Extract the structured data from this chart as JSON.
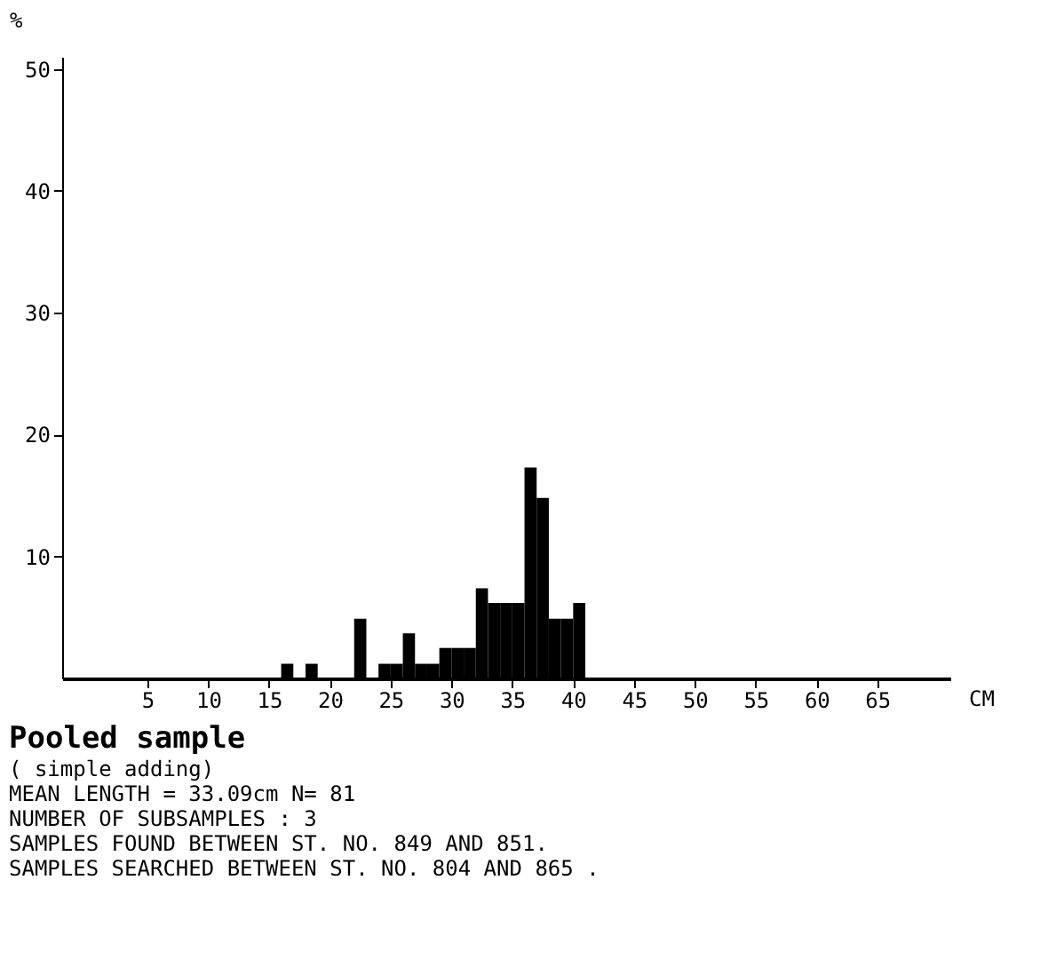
{
  "chart_data": {
    "type": "histogram",
    "title": "Pooled sample",
    "subtitle": "( simple adding)",
    "xlabel": "CM",
    "ylabel": "%",
    "bins": [
      15,
      16,
      17,
      18,
      19,
      20,
      21,
      22,
      23,
      24,
      25,
      26,
      27,
      28,
      29,
      30,
      31,
      32,
      33,
      34,
      35,
      36,
      37,
      38,
      39,
      40,
      41
    ],
    "values": [
      0,
      1.2,
      0,
      1.2,
      0,
      0,
      0,
      4.9,
      0,
      1.2,
      1.2,
      3.7,
      1.2,
      1.2,
      2.5,
      2.5,
      2.5,
      7.4,
      6.2,
      6.2,
      6.2,
      17.3,
      14.8,
      4.9,
      4.9,
      6.2
    ],
    "color": "#000000",
    "xlim": [
      -2,
      71
    ],
    "xticks": [
      5,
      10,
      15,
      20,
      25,
      30,
      35,
      40,
      45,
      50,
      55,
      60,
      65
    ],
    "ylim": [
      0,
      51
    ],
    "yticks": [
      10,
      20,
      30,
      40,
      50
    ],
    "grid": false,
    "annotations": [
      "MEAN LENGTH = 33.09cm  N=   81",
      "NUMBER OF SUBSAMPLES :  3",
      "SAMPLES FOUND BETWEEN ST. NO. 849 AND  851.",
      "SAMPLES SEARCHED BETWEEN ST. NO. 804 AND  865 ."
    ]
  }
}
